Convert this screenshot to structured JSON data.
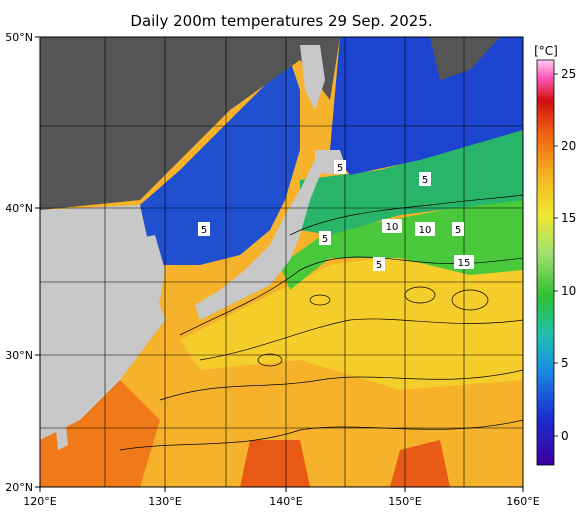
{
  "title": "Daily 200m temperatures 29 Sep. 2025.",
  "axes": {
    "lat_labels": [
      "50°N",
      "40°N",
      "30°N",
      "20°N"
    ],
    "lon_labels": [
      "120°E",
      "130°E",
      "140°E",
      "150°E",
      "160°E"
    ]
  },
  "colorbar": {
    "unit": "[°C]",
    "ticks": [
      "25",
      "20",
      "15",
      "10",
      "5",
      "0"
    ],
    "range": [
      -3,
      26
    ]
  },
  "isotherm_labels": [
    "5",
    "5",
    "5",
    "5",
    "5",
    "10",
    "10",
    "5",
    "15"
  ],
  "colors": {
    "land": "#c8c8c8",
    "no_data": "#555555",
    "warm": "#f7b52a",
    "cold": "#1a3fcf"
  }
}
